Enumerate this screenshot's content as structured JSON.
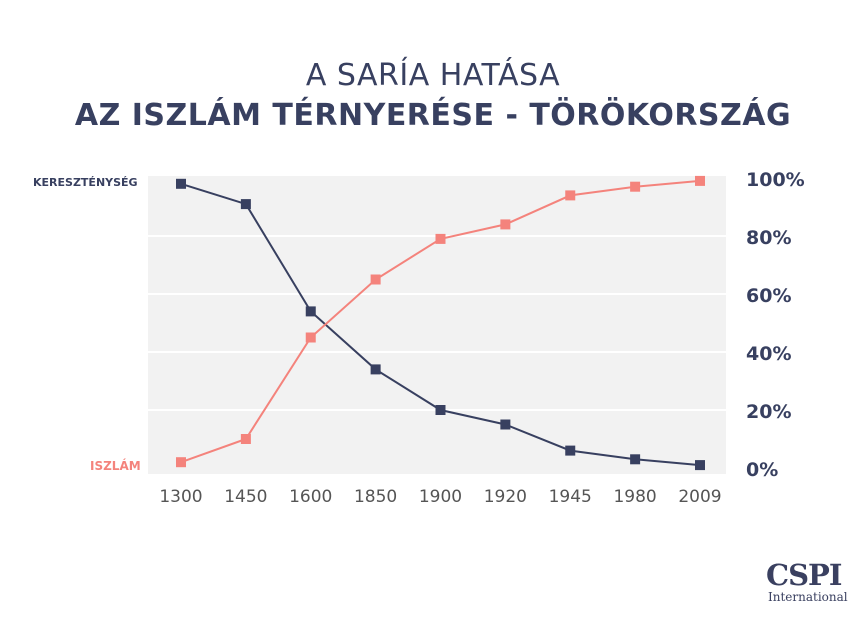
{
  "header": {
    "title_line1": "A SARÍA HATÁSA",
    "title_line2": "AZ ISZLÁM TÉRNYERÉSE - TÖRÖKORSZÁG"
  },
  "logo": {
    "main": "CSPI",
    "sub": "International"
  },
  "chart_data": {
    "type": "line",
    "categories": [
      "1300",
      "1450",
      "1600",
      "1850",
      "1900",
      "1920",
      "1945",
      "1980",
      "2009"
    ],
    "series": [
      {
        "name": "KERESZTÉNYSÉG",
        "color": "#384060",
        "values": [
          98,
          91,
          54,
          34,
          20,
          15,
          6,
          3,
          1
        ]
      },
      {
        "name": "ISZLÁM",
        "color": "#f4837c",
        "values": [
          2,
          10,
          45,
          65,
          79,
          84,
          94,
          97,
          99
        ]
      }
    ],
    "y_ticks": [
      "0%",
      "20%",
      "40%",
      "60%",
      "80%",
      "100%"
    ],
    "ylim": [
      0,
      100
    ],
    "grid": true,
    "y_axis_position": "right",
    "background_color": "#f2f2f2"
  }
}
